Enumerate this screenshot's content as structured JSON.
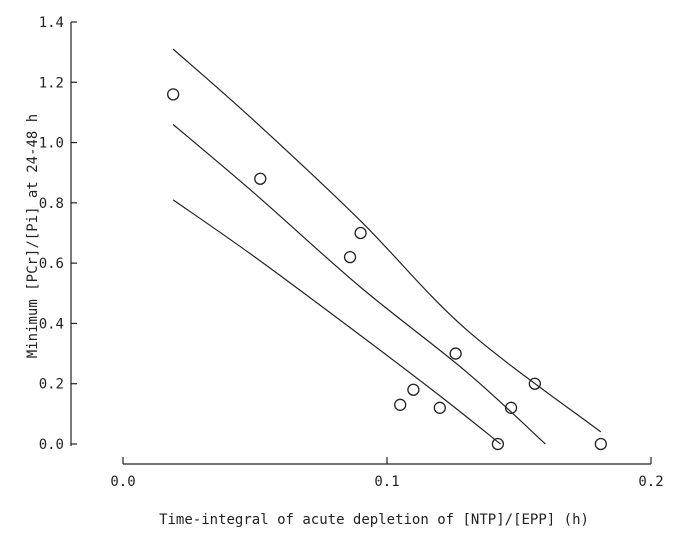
{
  "chart_data": {
    "type": "scatter",
    "title": "",
    "xlabel": "Time-integral of acute depletion of [NTP]/[EPP] (h)",
    "ylabel": "Minimum [PCr]/[Pi] at 24-48 h",
    "xlim": [
      0,
      0.2
    ],
    "ylim": [
      0,
      1.4
    ],
    "x_ticks": [
      0,
      0.1,
      0.2
    ],
    "x_tick_labels": [
      "0.0",
      "0.1",
      "0.2"
    ],
    "y_ticks": [
      0,
      0.2,
      0.4,
      0.6,
      0.8,
      1.0,
      1.2,
      1.4
    ],
    "y_tick_labels": [
      "0.0",
      "0.2",
      "0.4",
      "0.6",
      "0.8",
      "1.0",
      "1.2",
      "1.4"
    ],
    "grid": false,
    "points": [
      {
        "x": 0.019,
        "y": 1.16
      },
      {
        "x": 0.052,
        "y": 0.88
      },
      {
        "x": 0.086,
        "y": 0.62
      },
      {
        "x": 0.09,
        "y": 0.7
      },
      {
        "x": 0.105,
        "y": 0.13
      },
      {
        "x": 0.11,
        "y": 0.18
      },
      {
        "x": 0.12,
        "y": 0.12
      },
      {
        "x": 0.126,
        "y": 0.3
      },
      {
        "x": 0.142,
        "y": 0.0
      },
      {
        "x": 0.147,
        "y": 0.12
      },
      {
        "x": 0.156,
        "y": 0.2
      },
      {
        "x": 0.181,
        "y": 0.0
      }
    ],
    "fit_lines": [
      {
        "points": [
          [
            0.019,
            1.31
          ],
          [
            0.05,
            1.07
          ],
          [
            0.09,
            0.74
          ],
          [
            0.13,
            0.38
          ],
          [
            0.181,
            0.04
          ]
        ]
      },
      {
        "points": [
          [
            0.019,
            1.06
          ],
          [
            0.05,
            0.83
          ],
          [
            0.09,
            0.52
          ],
          [
            0.13,
            0.24
          ],
          [
            0.16,
            0.0
          ]
        ]
      },
      {
        "points": [
          [
            0.019,
            0.81
          ],
          [
            0.05,
            0.62
          ],
          [
            0.09,
            0.36
          ],
          [
            0.12,
            0.16
          ],
          [
            0.143,
            0.0
          ]
        ]
      }
    ]
  }
}
